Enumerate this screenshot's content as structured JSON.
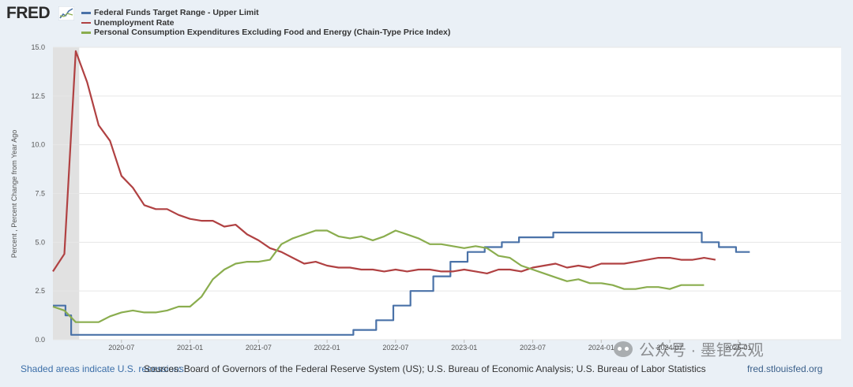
{
  "logo": {
    "text": "FRED"
  },
  "colors": {
    "fed": "#4a72a8",
    "unemp": "#b04142",
    "pce": "#8aad4e"
  },
  "chart_data": {
    "type": "line",
    "title": "",
    "xlabel": "",
    "ylabel": "Percent , Percent Change from Year Ago",
    "ylim": [
      0,
      15
    ],
    "xlim": [
      0,
      69
    ],
    "x_start": "2020-01",
    "yticks": [
      "0.0",
      "2.5",
      "5.0",
      "7.5",
      "10.0",
      "12.5",
      "15.0"
    ],
    "ytick_values": [
      0,
      2.5,
      5,
      7.5,
      10,
      12.5,
      15
    ],
    "xticks": [
      {
        "i": 6,
        "label": "2020-07"
      },
      {
        "i": 12,
        "label": "2021-01"
      },
      {
        "i": 18,
        "label": "2021-07"
      },
      {
        "i": 24,
        "label": "2022-01"
      },
      {
        "i": 30,
        "label": "2022-07"
      },
      {
        "i": 36,
        "label": "2023-01"
      },
      {
        "i": 42,
        "label": "2023-07"
      },
      {
        "i": 48,
        "label": "2024-01"
      },
      {
        "i": 54,
        "label": "2024-07"
      },
      {
        "i": 60,
        "label": "2025-01"
      }
    ],
    "recession": {
      "from": 0,
      "to": 2.3
    },
    "series": [
      {
        "name": "Federal Funds Target Range - Upper Limit",
        "key": "fed",
        "step": true,
        "changes": [
          [
            0,
            1.75
          ],
          [
            1.1,
            1.25
          ],
          [
            1.6,
            0.25
          ],
          [
            26.3,
            0.5
          ],
          [
            28.3,
            1.0
          ],
          [
            29.8,
            1.75
          ],
          [
            31.3,
            2.5
          ],
          [
            33.3,
            3.25
          ],
          [
            34.8,
            4.0
          ],
          [
            36.3,
            4.5
          ],
          [
            37.8,
            4.75
          ],
          [
            39.3,
            5.0
          ],
          [
            40.8,
            5.25
          ],
          [
            43.8,
            5.5
          ],
          [
            56.8,
            5.0
          ],
          [
            58.3,
            4.75
          ],
          [
            59.8,
            4.5
          ],
          [
            61.0,
            4.5
          ]
        ]
      },
      {
        "name": "Unemployment Rate",
        "key": "unemp",
        "values": [
          3.5,
          4.4,
          14.8,
          13.2,
          11.0,
          10.2,
          8.4,
          7.8,
          6.9,
          6.7,
          6.7,
          6.4,
          6.2,
          6.1,
          6.1,
          5.8,
          5.9,
          5.4,
          5.1,
          4.7,
          4.5,
          4.2,
          3.9,
          4.0,
          3.8,
          3.7,
          3.7,
          3.6,
          3.6,
          3.5,
          3.6,
          3.5,
          3.6,
          3.6,
          3.5,
          3.5,
          3.6,
          3.5,
          3.4,
          3.6,
          3.6,
          3.5,
          3.7,
          3.8,
          3.9,
          3.7,
          3.8,
          3.7,
          3.9,
          3.9,
          3.9,
          4.0,
          4.1,
          4.2,
          4.2,
          4.1,
          4.1,
          4.2,
          4.1
        ]
      },
      {
        "name": "Personal Consumption Expenditures Excluding Food and Energy (Chain-Type Price Index)",
        "key": "pce",
        "values": [
          1.7,
          1.5,
          0.9,
          0.9,
          0.9,
          1.2,
          1.4,
          1.5,
          1.4,
          1.4,
          1.5,
          1.7,
          1.7,
          2.2,
          3.1,
          3.6,
          3.9,
          4.0,
          4.0,
          4.1,
          4.9,
          5.2,
          5.4,
          5.6,
          5.6,
          5.3,
          5.2,
          5.3,
          5.1,
          5.3,
          5.6,
          5.4,
          5.2,
          4.9,
          4.9,
          4.8,
          4.7,
          4.8,
          4.7,
          4.3,
          4.2,
          3.8,
          3.6,
          3.4,
          3.2,
          3.0,
          3.1,
          2.9,
          2.9,
          2.8,
          2.6,
          2.6,
          2.7,
          2.7,
          2.6,
          2.8,
          2.8,
          2.8
        ]
      }
    ]
  },
  "footer": {
    "shaded": "Shaded areas indicate U.S. recessions.",
    "sources": "Sources: Board of Governors of the Federal Reserve System (US); U.S. Bureau of Economic Analysis; U.S. Bureau of Labor Statistics",
    "site": "fred.stlouisfed.org"
  },
  "watermark": {
    "text": "公众号 · 墨钜宏观"
  }
}
